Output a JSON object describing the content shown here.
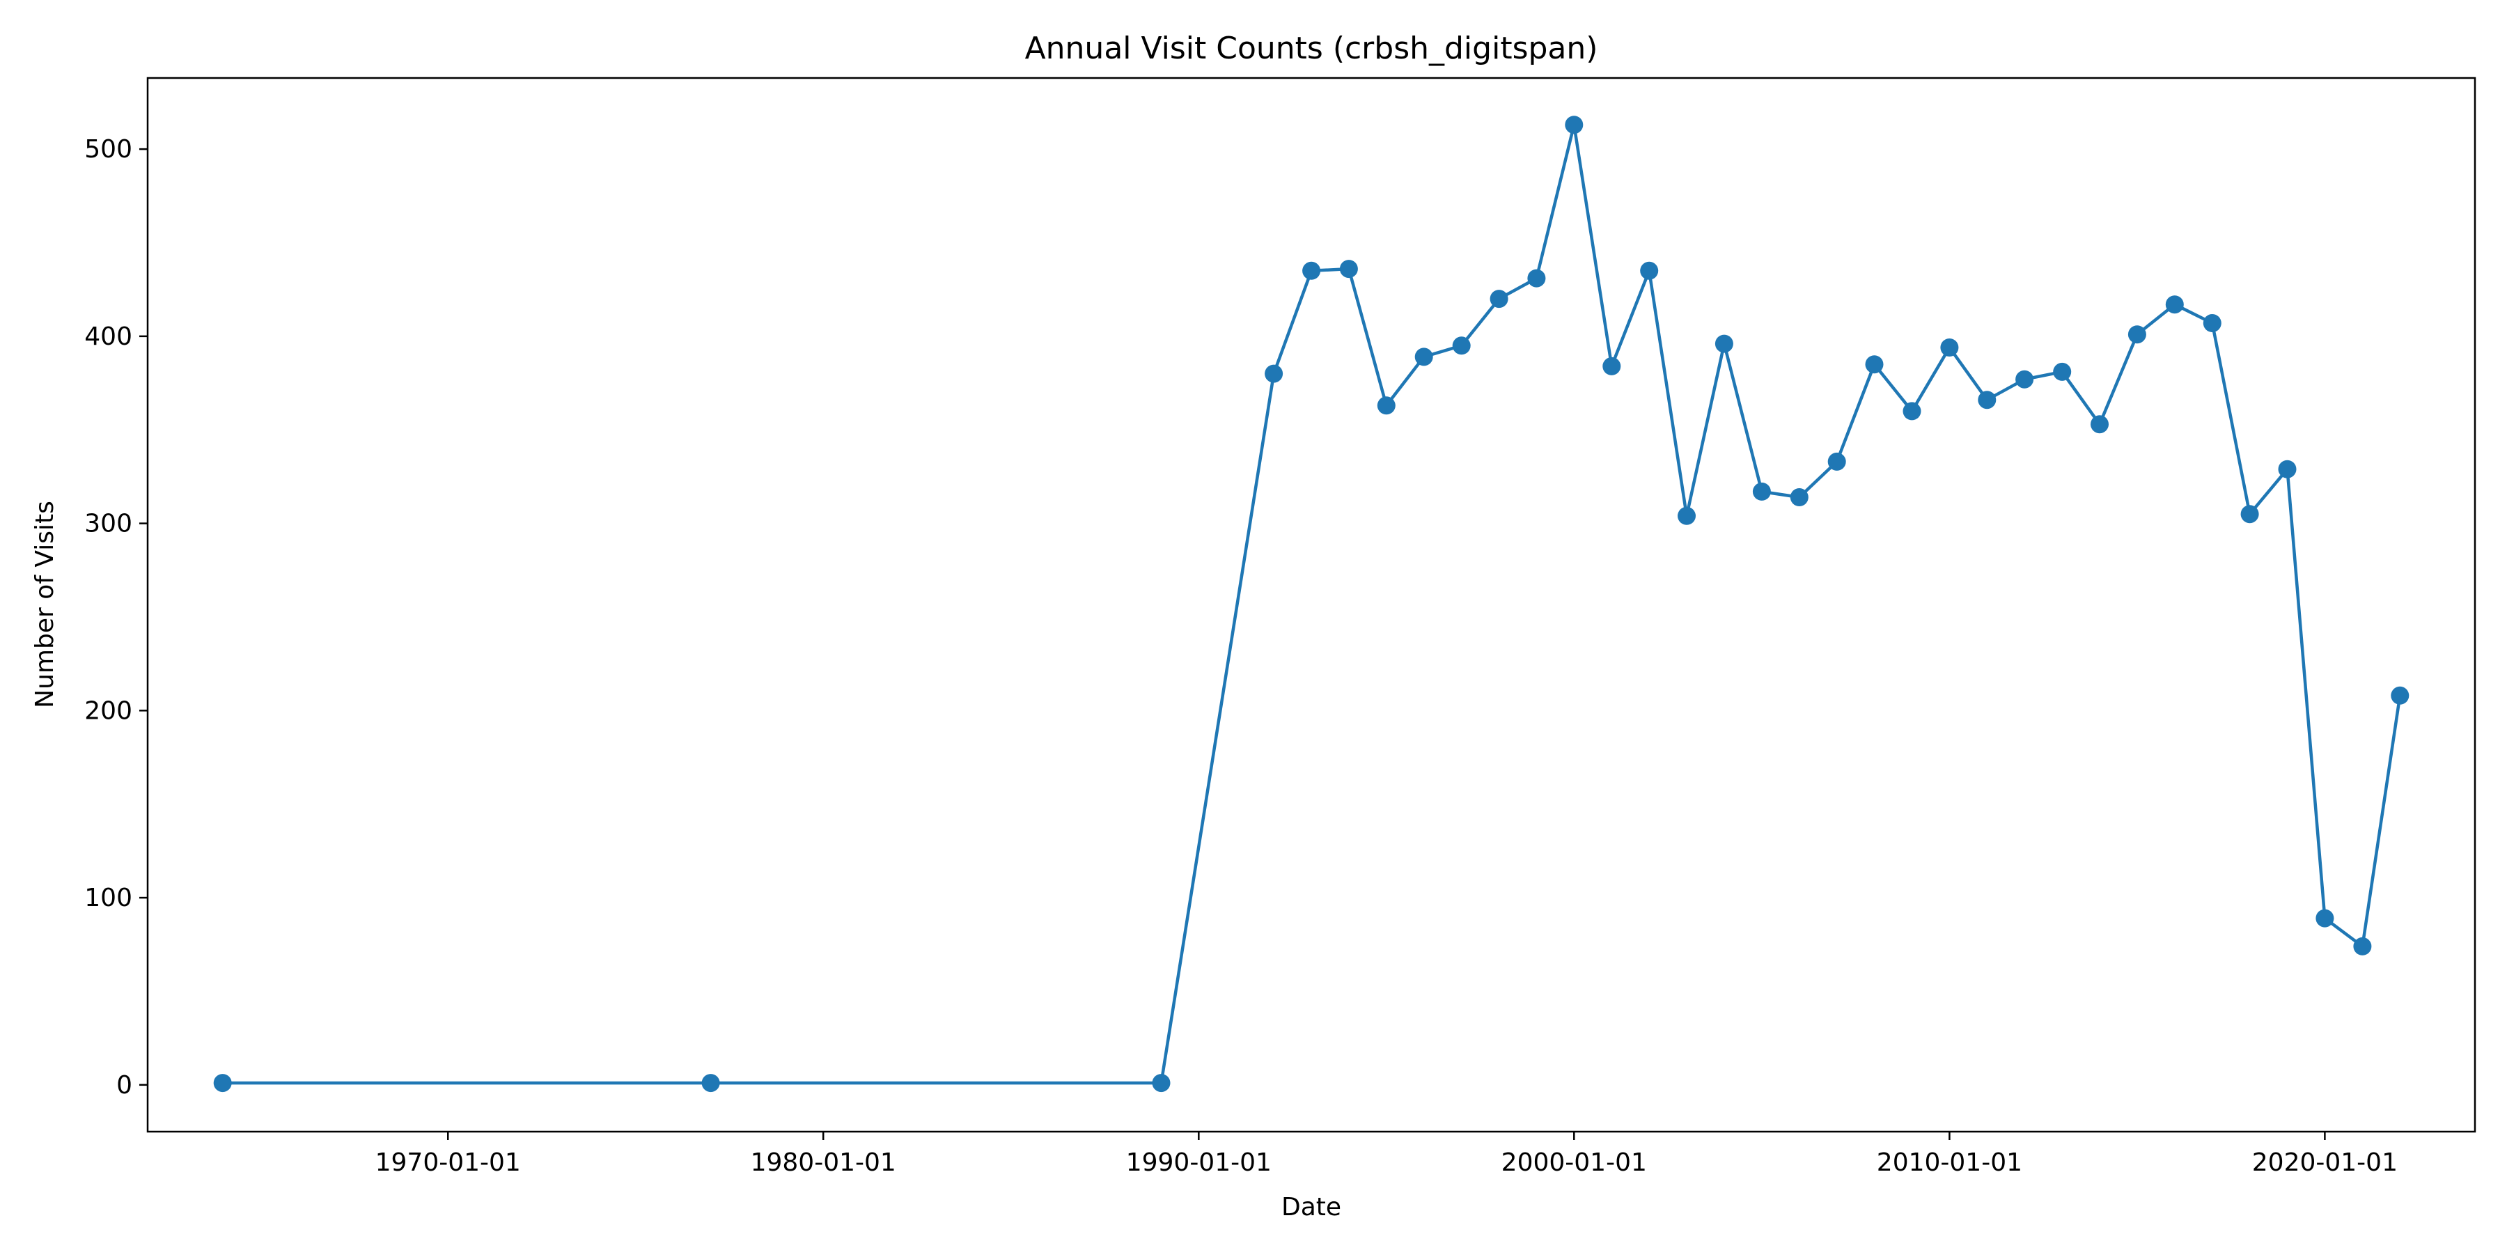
{
  "chart_data": {
    "type": "line",
    "title": "Annual Visit Counts (crbsh_digitspan)",
    "xlabel": "Date",
    "ylabel": "Number of Visits",
    "x_axis_type": "date",
    "xlim": [
      "1962-01-01",
      "2024-01-01"
    ],
    "ylim": [
      -25,
      538
    ],
    "x_ticks": [
      "1970-01-01",
      "1980-01-01",
      "1990-01-01",
      "2000-01-01",
      "2010-01-01",
      "2020-01-01"
    ],
    "y_ticks": [
      0,
      100,
      200,
      300,
      400,
      500
    ],
    "grid": false,
    "legend": "none",
    "line_color": "#1f77b4",
    "marker": "circle",
    "series": [
      {
        "x": [
          "1964-01-01",
          "1977-01-01",
          "1989-01-01",
          "1992-01-01",
          "1993-01-01",
          "1994-01-01",
          "1995-01-01",
          "1996-01-01",
          "1997-01-01",
          "1998-01-01",
          "1999-01-01",
          "2000-01-01",
          "2001-01-01",
          "2002-01-01",
          "2003-01-01",
          "2004-01-01",
          "2005-01-01",
          "2006-01-01",
          "2007-01-01",
          "2008-01-01",
          "2009-01-01",
          "2010-01-01",
          "2011-01-01",
          "2012-01-01",
          "2013-01-01",
          "2014-01-01",
          "2015-01-01",
          "2016-01-01",
          "2017-01-01",
          "2018-01-01",
          "2019-01-01",
          "2020-01-01",
          "2021-01-01",
          "2022-01-01"
        ],
        "y": [
          1,
          1,
          1,
          380,
          435,
          436,
          363,
          389,
          395,
          420,
          431,
          513,
          384,
          435,
          304,
          396,
          317,
          314,
          333,
          385,
          360,
          394,
          366,
          377,
          381,
          353,
          401,
          417,
          407,
          305,
          329,
          89,
          74,
          208
        ]
      }
    ]
  }
}
